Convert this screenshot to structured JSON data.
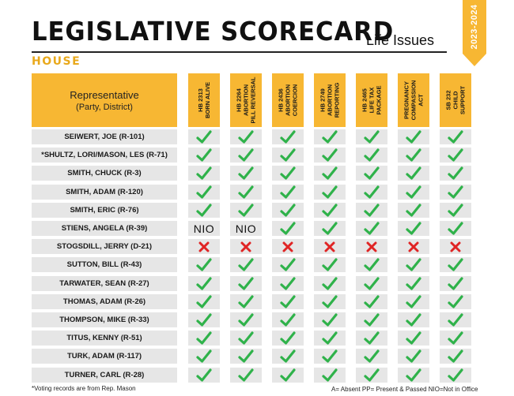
{
  "header": {
    "title": "LEGISLATIVE SCORECARD",
    "subtitle": "Life Issues",
    "chamber": "HOUSE",
    "year_range": "2023-2024"
  },
  "table": {
    "rep_header": {
      "line1": "Representative",
      "line2": "(Party, District)"
    },
    "bills": [
      {
        "id": "HB 2313",
        "lines": [
          "BORN ALIVE"
        ]
      },
      {
        "id": "HB 2264",
        "lines": [
          "ABORTION",
          "PILL REVERSAL"
        ]
      },
      {
        "id": "HB 2436",
        "lines": [
          "ABORTION",
          "COERCION"
        ]
      },
      {
        "id": "HB 2749",
        "lines": [
          "ABORTION",
          "REPORTING"
        ]
      },
      {
        "id": "HB 2465",
        "lines": [
          "LIFE TAX",
          "PACKAGE"
        ]
      },
      {
        "id": "",
        "lines": [
          "PREGNANCY",
          "COMPASSION",
          "ACT"
        ]
      },
      {
        "id": "SB 232",
        "lines": [
          "CHILD",
          "SUPPORT"
        ]
      }
    ],
    "rows": [
      {
        "name": "SEIWERT, JOE (R-101)",
        "votes": [
          "check",
          "check",
          "check",
          "check",
          "check",
          "check",
          "check"
        ]
      },
      {
        "name": "*SHULTZ, LORI/MASON, LES (R-71)",
        "votes": [
          "check",
          "check",
          "check",
          "check",
          "check",
          "check",
          "check"
        ]
      },
      {
        "name": "SMITH, CHUCK (R-3)",
        "votes": [
          "check",
          "check",
          "check",
          "check",
          "check",
          "check",
          "check"
        ]
      },
      {
        "name": "SMITH, ADAM (R-120)",
        "votes": [
          "check",
          "check",
          "check",
          "check",
          "check",
          "check",
          "check"
        ]
      },
      {
        "name": "SMITH, ERIC (R-76)",
        "votes": [
          "check",
          "check",
          "check",
          "check",
          "check",
          "check",
          "check"
        ]
      },
      {
        "name": "STIENS, ANGELA (R-39)",
        "votes": [
          "NIO",
          "NIO",
          "check",
          "check",
          "check",
          "check",
          "check"
        ]
      },
      {
        "name": "STOGSDILL, JERRY (D-21)",
        "votes": [
          "x",
          "x",
          "x",
          "x",
          "x",
          "x",
          "x"
        ]
      },
      {
        "name": "SUTTON, BILL (R-43)",
        "votes": [
          "check",
          "check",
          "check",
          "check",
          "check",
          "check",
          "check"
        ]
      },
      {
        "name": "TARWATER, SEAN (R-27)",
        "votes": [
          "check",
          "check",
          "check",
          "check",
          "check",
          "check",
          "check"
        ]
      },
      {
        "name": "THOMAS, ADAM (R-26)",
        "votes": [
          "check",
          "check",
          "check",
          "check",
          "check",
          "check",
          "check"
        ]
      },
      {
        "name": "THOMPSON, MIKE (R-33)",
        "votes": [
          "check",
          "check",
          "check",
          "check",
          "check",
          "check",
          "check"
        ]
      },
      {
        "name": "TITUS, KENNY (R-51)",
        "votes": [
          "check",
          "check",
          "check",
          "check",
          "check",
          "check",
          "check"
        ]
      },
      {
        "name": "TURK, ADAM (R-117)",
        "votes": [
          "check",
          "check",
          "check",
          "check",
          "check",
          "check",
          "check"
        ]
      },
      {
        "name": "TURNER, CARL (R-28)",
        "votes": [
          "check",
          "check",
          "check",
          "check",
          "check",
          "check",
          "check"
        ]
      }
    ]
  },
  "footer": {
    "note": "*Voting records are from Rep. Mason",
    "legend": "A= Absent PP= Present & Passed NIO=Not in Office"
  },
  "colors": {
    "header_gold": "#f7b733",
    "chamber_gold": "#e9a91c",
    "check_green": "#2fb24a",
    "x_red": "#e02424",
    "cell_gray": "#e6e6e6"
  },
  "icons": {
    "yes": "check-icon",
    "no": "x-icon"
  }
}
